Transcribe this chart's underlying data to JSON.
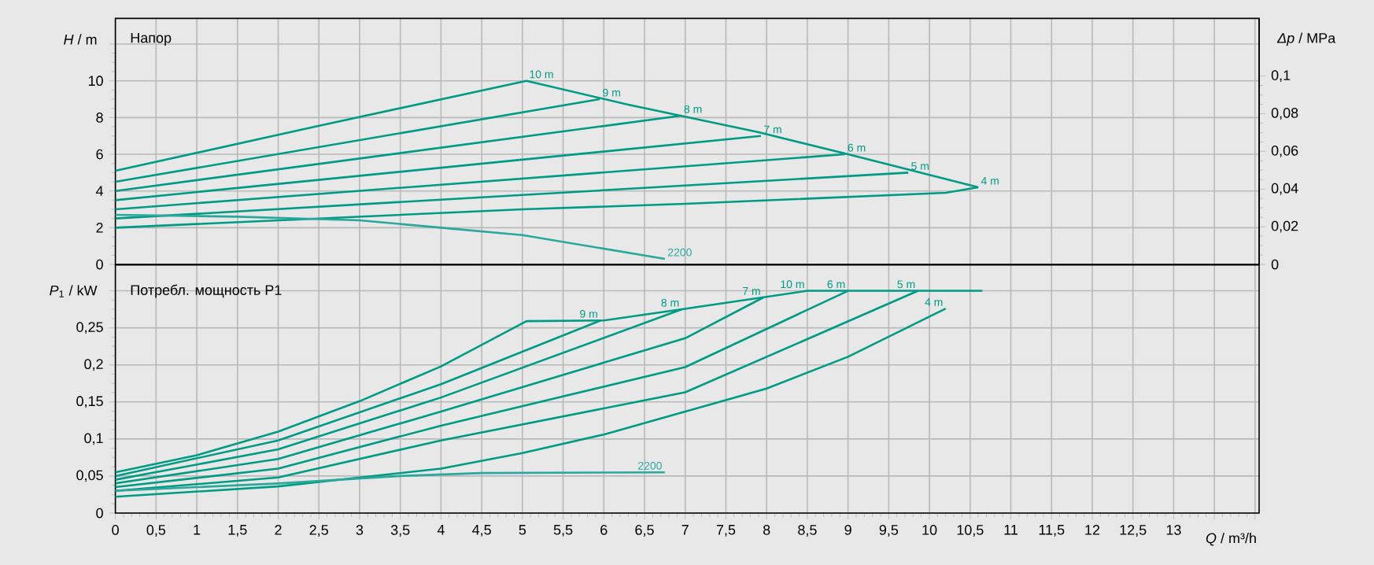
{
  "chart_data": [
    {
      "type": "line",
      "title": "Напор",
      "ylabel": "*H* / m",
      "y2label": "*Δp* / MPa",
      "xlim": [
        0,
        14.05
      ],
      "ylim": [
        0,
        13.4
      ],
      "y2lim": [
        0,
        0.1306
      ],
      "xticks": [
        0,
        0.5,
        1,
        1.5,
        2,
        2.5,
        3,
        3.5,
        4,
        4.5,
        5,
        5.5,
        6,
        6.5,
        7,
        7.5,
        8,
        8.5,
        9,
        9.5,
        10,
        10.5,
        11,
        11.5,
        12,
        12.5,
        13,
        13.5,
        14
      ],
      "yticks": [
        0,
        2,
        4,
        6,
        8,
        10,
        {
          "value": 12,
          "label": null
        }
      ],
      "y2ticks": [
        0,
        {
          "value": 0.02,
          "label": "0,02"
        },
        {
          "value": 0.04,
          "label": "0,04"
        },
        {
          "value": 0.06,
          "label": "0,06"
        },
        {
          "value": 0.08,
          "label": "0,08"
        },
        {
          "value": 0.1,
          "label": "0,1"
        }
      ],
      "tick_labels": "y",
      "grid": true,
      "series": [
        {
          "name": "10 m",
          "color": "#009b84",
          "x": [
            0,
            2.45,
            5.05,
            6.3,
            7.9,
            9,
            10.6
          ],
          "values": [
            5.1,
            7.5,
            10,
            8.7,
            7.2,
            6.0,
            4.2
          ]
        },
        {
          "name": "9 m",
          "color": "#009b84",
          "x": [
            0,
            5.95
          ],
          "values": [
            4.5,
            9.0
          ]
        },
        {
          "name": "8 m",
          "color": "#009b84",
          "x": [
            0,
            6.95
          ],
          "values": [
            4.0,
            8.1
          ]
        },
        {
          "name": "7 m",
          "color": "#009b84",
          "x": [
            0,
            7.93
          ],
          "values": [
            3.5,
            7.0
          ]
        },
        {
          "name": "6 m",
          "color": "#009b84",
          "x": [
            0,
            8.96
          ],
          "values": [
            3.0,
            6.0
          ]
        },
        {
          "name": "5 m",
          "color": "#009b84",
          "x": [
            0,
            9.74
          ],
          "values": [
            2.5,
            5.0
          ]
        },
        {
          "name": "4 m",
          "color": "#009b84",
          "x": [
            0,
            5,
            7,
            10.2,
            10.6
          ],
          "values": [
            2.0,
            3.0,
            3.3,
            3.9,
            4.2
          ]
        },
        {
          "name": "2200",
          "color": "#2aa89c",
          "x": [
            0,
            1.5,
            3,
            4,
            5,
            6.75
          ],
          "values": [
            2.7,
            2.6,
            2.4,
            2.0,
            1.6,
            0.3
          ]
        }
      ]
    },
    {
      "type": "line",
      "title": "Потребл. мощность P1",
      "ylabel": "*P*$_{1}$ / kW",
      "xlabel": "*Q* / m³/h",
      "xlim": [
        0,
        14.05
      ],
      "ylim": [
        0,
        0.335
      ],
      "xticks": [
        0,
        {
          "value": 0.5,
          "label": "0,5"
        },
        1,
        {
          "value": 1.5,
          "label": "1,5"
        },
        2,
        {
          "value": 2.5,
          "label": "2,5"
        },
        3,
        {
          "value": 3.5,
          "label": "3,5"
        },
        4,
        {
          "value": 4.5,
          "label": "4,5"
        },
        5,
        {
          "value": 5.5,
          "label": "5,5"
        },
        6,
        {
          "value": 6.5,
          "label": "6,5"
        },
        7,
        {
          "value": 7.5,
          "label": "7,5"
        },
        8,
        {
          "value": 8.5,
          "label": "8,5"
        },
        9,
        {
          "value": 9.5,
          "label": "9,5"
        },
        10,
        {
          "value": 10.5,
          "label": "10,5"
        },
        11,
        {
          "value": 11.5,
          "label": "11,5"
        },
        12,
        {
          "value": 12.5,
          "label": "12,5"
        },
        13,
        {
          "value": 13.5,
          "label": null
        },
        {
          "value": 14,
          "label": null
        }
      ],
      "yticks": [
        0,
        {
          "value": 0.05,
          "label": "0,05"
        },
        {
          "value": 0.1,
          "label": "0,1"
        },
        {
          "value": 0.15,
          "label": "0,15"
        },
        {
          "value": 0.2,
          "label": "0,2"
        },
        {
          "value": 0.25,
          "label": "0,25"
        },
        {
          "value": 0.3,
          "label": null
        }
      ],
      "grid": true,
      "series": [
        {
          "name": "10 m",
          "color": "#009b84",
          "x": [
            0,
            1,
            2,
            3,
            4,
            5.05,
            6,
            6.96,
            8.5,
            10.65
          ],
          "values": [
            0.055,
            0.078,
            0.11,
            0.151,
            0.198,
            0.259,
            0.26,
            0.275,
            0.3,
            0.3
          ]
        },
        {
          "name": "9 m",
          "color": "#009b84",
          "x": [
            0,
            2,
            4,
            5.96
          ],
          "values": [
            0.05,
            0.098,
            0.174,
            0.26
          ]
        },
        {
          "name": "8 m",
          "color": "#009b84",
          "x": [
            0,
            2,
            4,
            6.96
          ],
          "values": [
            0.045,
            0.086,
            0.156,
            0.275
          ]
        },
        {
          "name": "7 m",
          "color": "#009b84",
          "x": [
            0,
            2,
            4,
            7,
            7.96
          ],
          "values": [
            0.04,
            0.073,
            0.137,
            0.236,
            0.291
          ]
        },
        {
          "name": "6 m",
          "color": "#009b84",
          "x": [
            0,
            2,
            4,
            7,
            9
          ],
          "values": [
            0.035,
            0.06,
            0.118,
            0.197,
            0.3
          ]
        },
        {
          "name": "5 m",
          "color": "#009b84",
          "x": [
            0,
            2,
            4,
            7,
            9.86
          ],
          "values": [
            0.03,
            0.048,
            0.098,
            0.163,
            0.3
          ]
        },
        {
          "name": "4 m",
          "color": "#009b84",
          "x": [
            0,
            2,
            4,
            5,
            6,
            7,
            8,
            9,
            10.2
          ],
          "values": [
            0.022,
            0.036,
            0.06,
            0.081,
            0.106,
            0.137,
            0.168,
            0.211,
            0.276
          ]
        },
        {
          "name": "2200",
          "color": "#2aa89c",
          "x": [
            0,
            2,
            3.5,
            4.5,
            6.75
          ],
          "values": [
            0.03,
            0.04,
            0.05,
            0.054,
            0.055
          ]
        }
      ]
    }
  ]
}
